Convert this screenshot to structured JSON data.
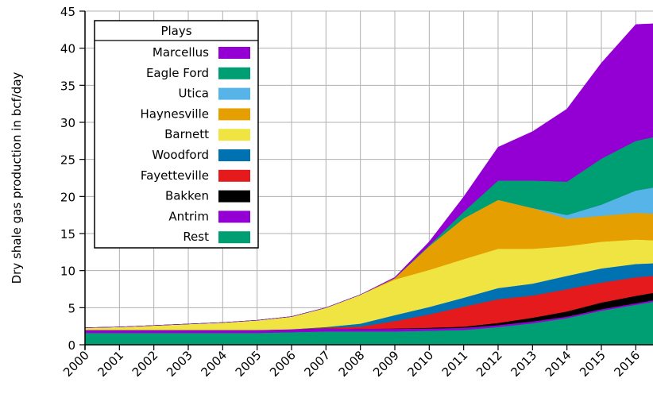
{
  "chart_data": {
    "type": "area",
    "stacked": true,
    "title": "",
    "xlabel": "",
    "ylabel": "Dry shale gas production in bcf/day",
    "xlim": [
      2000,
      2016.5
    ],
    "ylim": [
      0,
      45
    ],
    "x_ticks": [
      "2000",
      "2001",
      "2002",
      "2003",
      "2004",
      "2005",
      "2006",
      "2007",
      "2008",
      "2009",
      "2010",
      "2011",
      "2012",
      "2013",
      "2014",
      "2015",
      "2016"
    ],
    "y_ticks": [
      "0",
      "5",
      "10",
      "15",
      "20",
      "25",
      "30",
      "35",
      "40",
      "45"
    ],
    "grid": true,
    "legend": {
      "title": "Plays",
      "position": "top-left"
    },
    "x": [
      2000,
      2001,
      2002,
      2003,
      2004,
      2005,
      2006,
      2007,
      2008,
      2009,
      2010,
      2011,
      2012,
      2013,
      2014,
      2015,
      2016,
      2016.5
    ],
    "series": [
      {
        "name": "Rest",
        "color": "#009E73",
        "values": [
          1.6,
          1.6,
          1.6,
          1.6,
          1.6,
          1.6,
          1.7,
          1.8,
          1.8,
          1.8,
          1.9,
          2.0,
          2.4,
          2.9,
          3.6,
          4.6,
          5.4,
          5.8
        ]
      },
      {
        "name": "Antrim",
        "color": "#9400D3",
        "values": [
          0.4,
          0.4,
          0.4,
          0.4,
          0.4,
          0.4,
          0.4,
          0.4,
          0.35,
          0.35,
          0.3,
          0.3,
          0.25,
          0.25,
          0.2,
          0.2,
          0.2,
          0.2
        ]
      },
      {
        "name": "Bakken",
        "color": "#000000",
        "values": [
          0,
          0,
          0,
          0,
          0,
          0,
          0,
          0,
          0,
          0.05,
          0.1,
          0.15,
          0.3,
          0.5,
          0.7,
          0.9,
          1.0,
          1.0
        ]
      },
      {
        "name": "Fayetteville",
        "color": "#E41A1C",
        "values": [
          0,
          0,
          0,
          0,
          0,
          0,
          0,
          0.1,
          0.3,
          1.0,
          1.8,
          2.7,
          3.2,
          3.0,
          3.0,
          2.7,
          2.5,
          2.3
        ]
      },
      {
        "name": "Woodford",
        "color": "#0072B2",
        "values": [
          0,
          0,
          0,
          0,
          0,
          0,
          0,
          0.1,
          0.4,
          0.8,
          1.0,
          1.2,
          1.5,
          1.6,
          1.8,
          1.9,
          1.8,
          1.7
        ]
      },
      {
        "name": "Barnett",
        "color": "#F0E442",
        "values": [
          0.3,
          0.4,
          0.6,
          0.8,
          1.0,
          1.3,
          1.7,
          2.6,
          3.9,
          4.8,
          5.0,
          5.2,
          5.3,
          4.7,
          4.0,
          3.6,
          3.3,
          3.1
        ]
      },
      {
        "name": "Haynesville",
        "color": "#E69F00",
        "values": [
          0,
          0,
          0,
          0,
          0,
          0,
          0,
          0,
          0,
          0.2,
          3.2,
          5.5,
          6.6,
          5.5,
          3.7,
          3.5,
          3.6,
          3.6
        ]
      },
      {
        "name": "Utica",
        "color": "#56B4E9",
        "values": [
          0,
          0,
          0,
          0,
          0,
          0,
          0,
          0,
          0,
          0,
          0,
          0,
          0,
          0,
          0.5,
          1.5,
          3.0,
          3.5
        ]
      },
      {
        "name": "Eagle Ford",
        "color": "#009E73",
        "values": [
          0,
          0,
          0,
          0,
          0,
          0,
          0,
          0,
          0,
          0,
          0.1,
          0.9,
          2.6,
          3.7,
          4.5,
          6.2,
          6.7,
          6.8
        ]
      },
      {
        "name": "Marcellus",
        "color": "#9400D3",
        "values": [
          0,
          0,
          0,
          0,
          0,
          0,
          0,
          0,
          0,
          0.1,
          0.5,
          2.0,
          4.5,
          6.6,
          9.8,
          12.9,
          15.7,
          15.3
        ]
      }
    ],
    "legend_order": [
      "Marcellus",
      "Eagle Ford",
      "Utica",
      "Haynesville",
      "Barnett",
      "Woodford",
      "Fayetteville",
      "Bakken",
      "Antrim",
      "Rest"
    ]
  }
}
